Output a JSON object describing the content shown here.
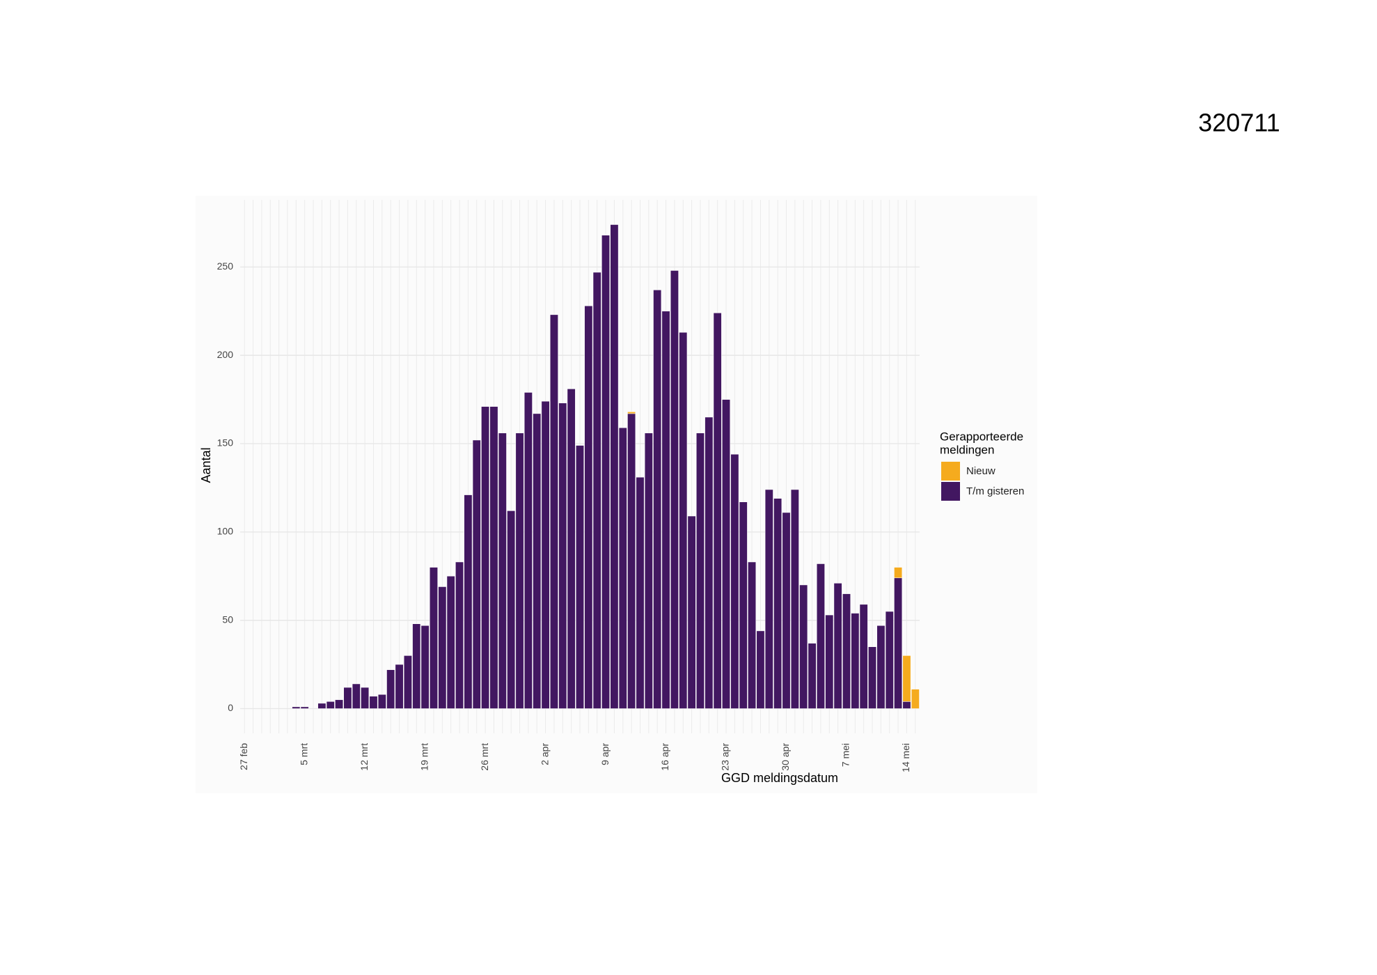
{
  "stamp": "320711",
  "chart_data": {
    "type": "bar",
    "stacked": true,
    "x_label": "GGD meldingsdatum",
    "y_label": "Aantal",
    "legend_title": [
      "Gerapporteerde",
      "meldingen"
    ],
    "categories": [
      "27 feb",
      null,
      null,
      null,
      null,
      null,
      null,
      "5 mrt",
      null,
      null,
      null,
      null,
      null,
      null,
      "12 mrt",
      null,
      null,
      null,
      null,
      null,
      null,
      "19 mrt",
      null,
      null,
      null,
      null,
      null,
      null,
      "26 mrt",
      null,
      null,
      null,
      null,
      null,
      null,
      "2 apr",
      null,
      null,
      null,
      null,
      null,
      null,
      "9 apr",
      null,
      null,
      null,
      null,
      null,
      null,
      "16 apr",
      null,
      null,
      null,
      null,
      null,
      null,
      "23 apr",
      null,
      null,
      null,
      null,
      null,
      null,
      "30 apr",
      null,
      null,
      null,
      null,
      null,
      null,
      "7 mei",
      null,
      null,
      null,
      null,
      null,
      null,
      "14 mei",
      null
    ],
    "series": [
      {
        "name": "Nieuw",
        "color": "#f5ab1e",
        "values": [
          0,
          0,
          0,
          0,
          0,
          0,
          0,
          0,
          0,
          0,
          0,
          0,
          0,
          0,
          0,
          0,
          0,
          0,
          0,
          0,
          0,
          0,
          0,
          0,
          0,
          0,
          0,
          0,
          0,
          0,
          0,
          0,
          0,
          0,
          0,
          0,
          0,
          0,
          0,
          0,
          0,
          0,
          0,
          0,
          0,
          1,
          0,
          0,
          0,
          0,
          0,
          0,
          0,
          0,
          0,
          0,
          0,
          0,
          0,
          0,
          0,
          0,
          0,
          0,
          0,
          0,
          0,
          0,
          0,
          0,
          0,
          0,
          0,
          0,
          0,
          0,
          6,
          26,
          11
        ]
      },
      {
        "name": "T/m gisteren",
        "color": "#421761",
        "values": [
          0,
          0,
          0,
          0,
          0,
          0,
          1,
          1,
          0,
          3,
          4,
          5,
          12,
          14,
          12,
          7,
          8,
          22,
          25,
          30,
          48,
          47,
          80,
          69,
          75,
          83,
          121,
          152,
          171,
          171,
          156,
          112,
          156,
          179,
          167,
          174,
          223,
          173,
          181,
          149,
          228,
          247,
          268,
          274,
          159,
          167,
          131,
          156,
          237,
          225,
          248,
          213,
          109,
          156,
          165,
          224,
          175,
          144,
          117,
          83,
          44,
          124,
          119,
          111,
          124,
          70,
          37,
          82,
          53,
          71,
          65,
          54,
          59,
          35,
          47,
          55,
          74,
          4,
          0
        ]
      }
    ],
    "ylim": [
      -14,
      288
    ],
    "yticks": [
      0,
      50,
      100,
      150,
      200,
      250
    ],
    "grid": true,
    "legend": "right"
  }
}
